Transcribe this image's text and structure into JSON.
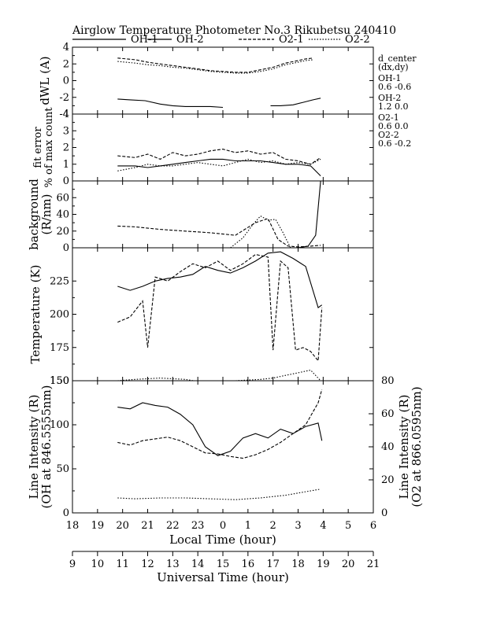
{
  "chart_data": {
    "type": "line",
    "title": "Airglow Temperature Photometer No.3   Rikubetsu    240410",
    "legend": [
      {
        "name": "OH-1",
        "color": "#000000",
        "dash": "solid"
      },
      {
        "name": "OH-2",
        "color": "#000000",
        "dash": "solid"
      },
      {
        "name": "O2-1",
        "color": "#000000",
        "dash": "dashed"
      },
      {
        "name": "O2-2",
        "color": "#000000",
        "dash": "dotted"
      }
    ],
    "x_local": {
      "label": "Local Time (hour)",
      "range": [
        18,
        30
      ],
      "ticks": [
        18,
        19,
        20,
        21,
        22,
        23,
        24,
        25,
        26,
        27,
        28,
        29,
        30
      ],
      "tick_labels": [
        "18",
        "19",
        "20",
        "21",
        "22",
        "23",
        "0",
        "1",
        "2",
        "3",
        "4",
        "5",
        "6"
      ]
    },
    "x_universal": {
      "label": "Universal Time (hour)",
      "range": [
        9,
        21
      ],
      "ticks": [
        9,
        10,
        11,
        12,
        13,
        14,
        15,
        16,
        17,
        18,
        19,
        20,
        21
      ],
      "tick_labels": [
        "9",
        "10",
        "11",
        "12",
        "13",
        "14",
        "15",
        "16",
        "17",
        "18",
        "19",
        "20",
        "21"
      ]
    },
    "side_info": {
      "heading": [
        "d_center",
        "(dx,dy)"
      ],
      "entries": [
        {
          "label": "OH-1",
          "value": "0.6   -0.6"
        },
        {
          "label": "OH-2",
          "value": "1.2   0.0"
        },
        {
          "label": "O2-1",
          "value": "0.6   0.0"
        },
        {
          "label": "O2-2",
          "value": "0.6   -0.2"
        }
      ]
    },
    "panels": [
      {
        "id": "dwl",
        "ylabel": "dWL (A)",
        "ylim": [
          -4,
          4
        ],
        "yticks": [
          -4,
          -2,
          0,
          2,
          4
        ],
        "series": [
          {
            "name": "OH-1",
            "x": [
              19.8,
              20.3,
              20.9,
              21.5,
              22.0,
              22.5,
              23.0,
              23.5,
              24.0
            ],
            "y": [
              -2.2,
              -2.3,
              -2.4,
              -2.8,
              -3.0,
              -3.1,
              -3.1,
              -3.1,
              -3.2
            ]
          },
          {
            "name": "OH-2",
            "x": [
              25.9,
              26.3,
              26.8,
              27.2,
              27.6,
              27.9
            ],
            "y": [
              -3.0,
              -3.0,
              -2.9,
              -2.6,
              -2.3,
              -2.1
            ]
          },
          {
            "name": "O2-1",
            "x": [
              19.8,
              20.5,
              21.0,
              21.5,
              22.0,
              22.5,
              23.0,
              23.5,
              24.0,
              24.5,
              25.0,
              25.5,
              26.0,
              26.5,
              27.0,
              27.3,
              27.6
            ],
            "y": [
              2.7,
              2.5,
              2.2,
              2.0,
              1.8,
              1.6,
              1.4,
              1.2,
              1.1,
              1.0,
              1.0,
              1.3,
              1.6,
              2.1,
              2.4,
              2.6,
              2.7
            ]
          },
          {
            "name": "O2-2",
            "x": [
              19.8,
              20.5,
              21.0,
              21.5,
              22.0,
              22.5,
              23.0,
              23.5,
              24.0,
              24.5,
              25.0,
              25.5,
              26.0,
              26.5,
              27.0,
              27.3,
              27.6
            ],
            "y": [
              2.3,
              2.1,
              1.9,
              1.8,
              1.6,
              1.5,
              1.3,
              1.1,
              1.0,
              0.9,
              0.9,
              1.1,
              1.4,
              1.9,
              2.2,
              2.4,
              2.5
            ]
          }
        ]
      },
      {
        "id": "fit",
        "ylabel": "fit error",
        "ylabel2": "% of max count",
        "ylim": [
          0,
          4
        ],
        "yticks": [
          0,
          1,
          2,
          3,
          4
        ],
        "series": [
          {
            "name": "OH-1",
            "x": [
              19.8,
              20.5,
              21.0,
              21.5,
              22.0,
              22.5,
              23.0,
              23.5,
              24.0,
              24.5,
              25.0,
              25.5,
              26.0,
              26.5,
              27.0,
              27.5,
              27.9
            ],
            "y": [
              0.9,
              0.9,
              0.8,
              0.9,
              1.0,
              1.1,
              1.2,
              1.3,
              1.3,
              1.2,
              1.2,
              1.2,
              1.1,
              1.0,
              1.0,
              0.9,
              0.3
            ]
          },
          {
            "name": "O2-1",
            "x": [
              19.8,
              20.5,
              21.0,
              21.5,
              22.0,
              22.5,
              23.0,
              23.5,
              24.0,
              24.5,
              25.0,
              25.5,
              26.0,
              26.5,
              27.0,
              27.5,
              27.9
            ],
            "y": [
              1.5,
              1.4,
              1.6,
              1.3,
              1.7,
              1.5,
              1.6,
              1.8,
              1.9,
              1.7,
              1.8,
              1.6,
              1.7,
              1.3,
              1.2,
              1.0,
              1.4
            ]
          },
          {
            "name": "O2-2",
            "x": [
              19.8,
              20.5,
              21.0,
              21.5,
              22.0,
              22.5,
              23.0,
              23.5,
              24.0,
              24.5,
              25.0,
              25.5,
              26.0,
              26.5,
              27.0,
              27.5,
              27.9
            ],
            "y": [
              0.6,
              0.8,
              1.0,
              0.9,
              0.9,
              1.0,
              1.1,
              1.0,
              0.9,
              1.1,
              1.3,
              1.1,
              1.2,
              1.0,
              1.1,
              1.0,
              1.3
            ]
          }
        ]
      },
      {
        "id": "bg",
        "ylabel": "background",
        "ylabel2": "(R/nm)",
        "ylim": [
          0,
          80
        ],
        "yticks": [
          0,
          20,
          40,
          60,
          80
        ],
        "ytick_labels": [
          "0",
          "20",
          "40",
          "60",
          ""
        ],
        "series": [
          {
            "name": "OH-1",
            "x": [
              26.5,
              27.0,
              27.4,
              27.7,
              27.9
            ],
            "y": [
              0,
              0,
              2,
              15,
              80
            ]
          },
          {
            "name": "O2-1",
            "x": [
              19.8,
              20.5,
              21.5,
              22.5,
              23.5,
              24.5,
              25.3,
              25.8,
              26.2,
              26.6,
              27.0,
              27.5,
              27.9
            ],
            "y": [
              26,
              25,
              22,
              20,
              18,
              15,
              30,
              35,
              10,
              2,
              1,
              2,
              3
            ]
          },
          {
            "name": "O2-2",
            "x": [
              24.3,
              24.8,
              25.2,
              25.5,
              25.8,
              26.1,
              26.4,
              26.7
            ],
            "y": [
              0,
              12,
              28,
              38,
              33,
              34,
              18,
              0
            ]
          }
        ]
      },
      {
        "id": "temp",
        "ylabel": "Temperature (K)",
        "ylim": [
          150,
          250
        ],
        "yticks": [
          150,
          175,
          200,
          225
        ],
        "series": [
          {
            "name": "OH-1",
            "x": [
              19.8,
              20.3,
              20.8,
              21.3,
              21.8,
              22.3,
              22.8,
              23.3,
              23.8,
              24.3,
              24.8,
              25.3,
              25.8,
              26.3,
              26.8,
              27.3,
              27.8,
              27.95
            ],
            "y": [
              221,
              218,
              221,
              225,
              227,
              228,
              230,
              236,
              233,
              231,
              235,
              240,
              246,
              247,
              242,
              236,
              205,
              207
            ]
          },
          {
            "name": "O2-1",
            "x": [
              19.8,
              20.3,
              20.8,
              21.0,
              21.3,
              21.8,
              22.3,
              22.8,
              23.3,
              23.8,
              24.3,
              24.8,
              25.3,
              25.8,
              26.0,
              26.3,
              26.6,
              26.9,
              27.2,
              27.5,
              27.8,
              27.95
            ],
            "y": [
              194,
              198,
              210,
              175,
              228,
              225,
              232,
              238,
              235,
              240,
              233,
              238,
              245,
              243,
              173,
              240,
              235,
              173,
              175,
              172,
              165,
              205
            ]
          },
          {
            "name": "O2-2",
            "x": [
              19.8,
              20.5,
              21.5,
              22.5,
              23.5,
              24.5,
              25.5,
              26.0,
              26.5,
              27.0,
              27.5,
              27.9
            ],
            "y": [
              150,
              151,
              152,
              151,
              148,
              150,
              151,
              152,
              154,
              156,
              158,
              150
            ]
          }
        ]
      },
      {
        "id": "int",
        "ylabel": "Line Intensity (R)",
        "ylabel2": "(OH at 846.5555nm)",
        "ylabel_right": "Line Intensity (R)",
        "ylabel_right2": "(O2 at 866.0595nm)",
        "ylim": [
          0,
          150
        ],
        "yticks": [
          0,
          50,
          100,
          150
        ],
        "ylim_right": [
          0,
          80
        ],
        "yticks_right": [
          0,
          20,
          40,
          60,
          80
        ],
        "series": [
          {
            "name": "OH-1",
            "x": [
              19.8,
              20.3,
              20.8,
              21.3,
              21.8,
              22.3,
              22.8,
              23.3,
              23.8,
              24.3,
              24.8,
              25.3,
              25.8,
              26.3,
              26.8,
              27.3,
              27.8,
              27.95
            ],
            "y": [
              120,
              118,
              125,
              122,
              120,
              112,
              100,
              75,
              65,
              70,
              85,
              90,
              85,
              95,
              90,
              98,
              102,
              82
            ]
          },
          {
            "name": "O2-1",
            "x": [
              19.8,
              20.3,
              20.8,
              21.3,
              21.8,
              22.3,
              22.8,
              23.3,
              23.8,
              24.3,
              24.8,
              25.3,
              25.8,
              26.3,
              26.8,
              27.3,
              27.8,
              27.95
            ],
            "y": [
              80,
              77,
              82,
              84,
              86,
              82,
              75,
              68,
              67,
              64,
              62,
              66,
              72,
              80,
              90,
              100,
              125,
              140
            ]
          },
          {
            "name": "O2-2",
            "x": [
              19.8,
              20.5,
              21.5,
              22.5,
              23.5,
              24.5,
              25.5,
              26.5,
              27.5,
              27.9
            ],
            "y": [
              17,
              16,
              17,
              17,
              16,
              15,
              17,
              20,
              25,
              27
            ]
          }
        ]
      }
    ]
  }
}
